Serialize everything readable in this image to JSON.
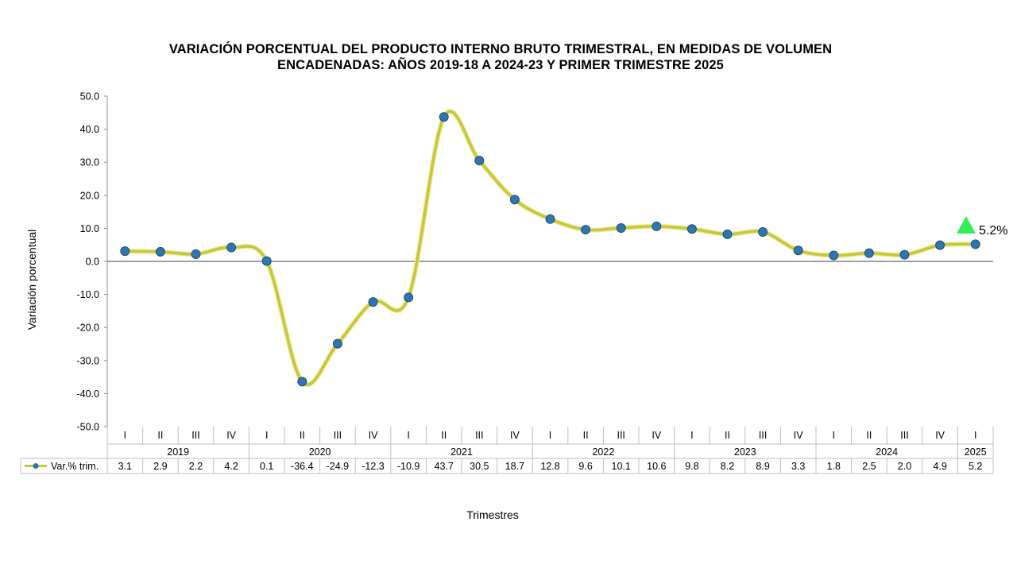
{
  "chart_data": {
    "type": "line",
    "title_lines": [
      "VARIACIÓN PORCENTUAL DEL PRODUCTO INTERNO BRUTO TRIMESTRAL, EN MEDIDAS DE VOLUMEN",
      "ENCADENADAS: AÑOS 2019-18 A 2024-23 Y PRIMER TRIMESTRE 2025"
    ],
    "ylabel": "Variación porcentual",
    "xlabel": "Trimestres",
    "ylim": [
      -50,
      50
    ],
    "yticks": [
      "50.0",
      "40.0",
      "30.0",
      "20.0",
      "10.0",
      "0.0",
      "-10.0",
      "-20.0",
      "-30.0",
      "-40.0",
      "-50.0"
    ],
    "ytick_values": [
      50,
      40,
      30,
      20,
      10,
      0,
      -10,
      -20,
      -30,
      -40,
      -50
    ],
    "quarters": [
      "I",
      "II",
      "III",
      "IV",
      "I",
      "II",
      "III",
      "IV",
      "I",
      "II",
      "III",
      "IV",
      "I",
      "II",
      "III",
      "IV",
      "I",
      "II",
      "III",
      "IV",
      "I",
      "II",
      "III",
      "IV",
      "I"
    ],
    "years": [
      {
        "label": "2019",
        "count": 4
      },
      {
        "label": "2020",
        "count": 4
      },
      {
        "label": "2021",
        "count": 4
      },
      {
        "label": "2022",
        "count": 4
      },
      {
        "label": "2023",
        "count": 4
      },
      {
        "label": "2024",
        "count": 4
      },
      {
        "label": "2025",
        "count": 1
      }
    ],
    "series": [
      {
        "name": "Var.% trim.",
        "values": [
          3.1,
          2.9,
          2.2,
          4.2,
          0.1,
          -36.4,
          -24.9,
          -12.3,
          -10.9,
          43.7,
          30.5,
          18.7,
          12.8,
          9.6,
          10.1,
          10.6,
          9.8,
          8.2,
          8.9,
          3.3,
          1.8,
          2.5,
          2.0,
          4.9,
          5.2
        ],
        "labels": [
          "3.1",
          "2.9",
          "2.2",
          "4.2",
          "0.1",
          "-36.4",
          "-24.9",
          "-12.3",
          "-10.9",
          "43.7",
          "30.5",
          "18.7",
          "12.8",
          "9.6",
          "10.1",
          "10.6",
          "9.8",
          "8.2",
          "8.9",
          "3.3",
          "1.8",
          "2.5",
          "2.0",
          "4.9",
          "5.2"
        ],
        "line_color": "#c8c832",
        "marker_color": "#2e75b6"
      }
    ],
    "annotation": {
      "text": "5.2%",
      "color": "#33ee55"
    },
    "grid": false,
    "legend": "data-table"
  }
}
